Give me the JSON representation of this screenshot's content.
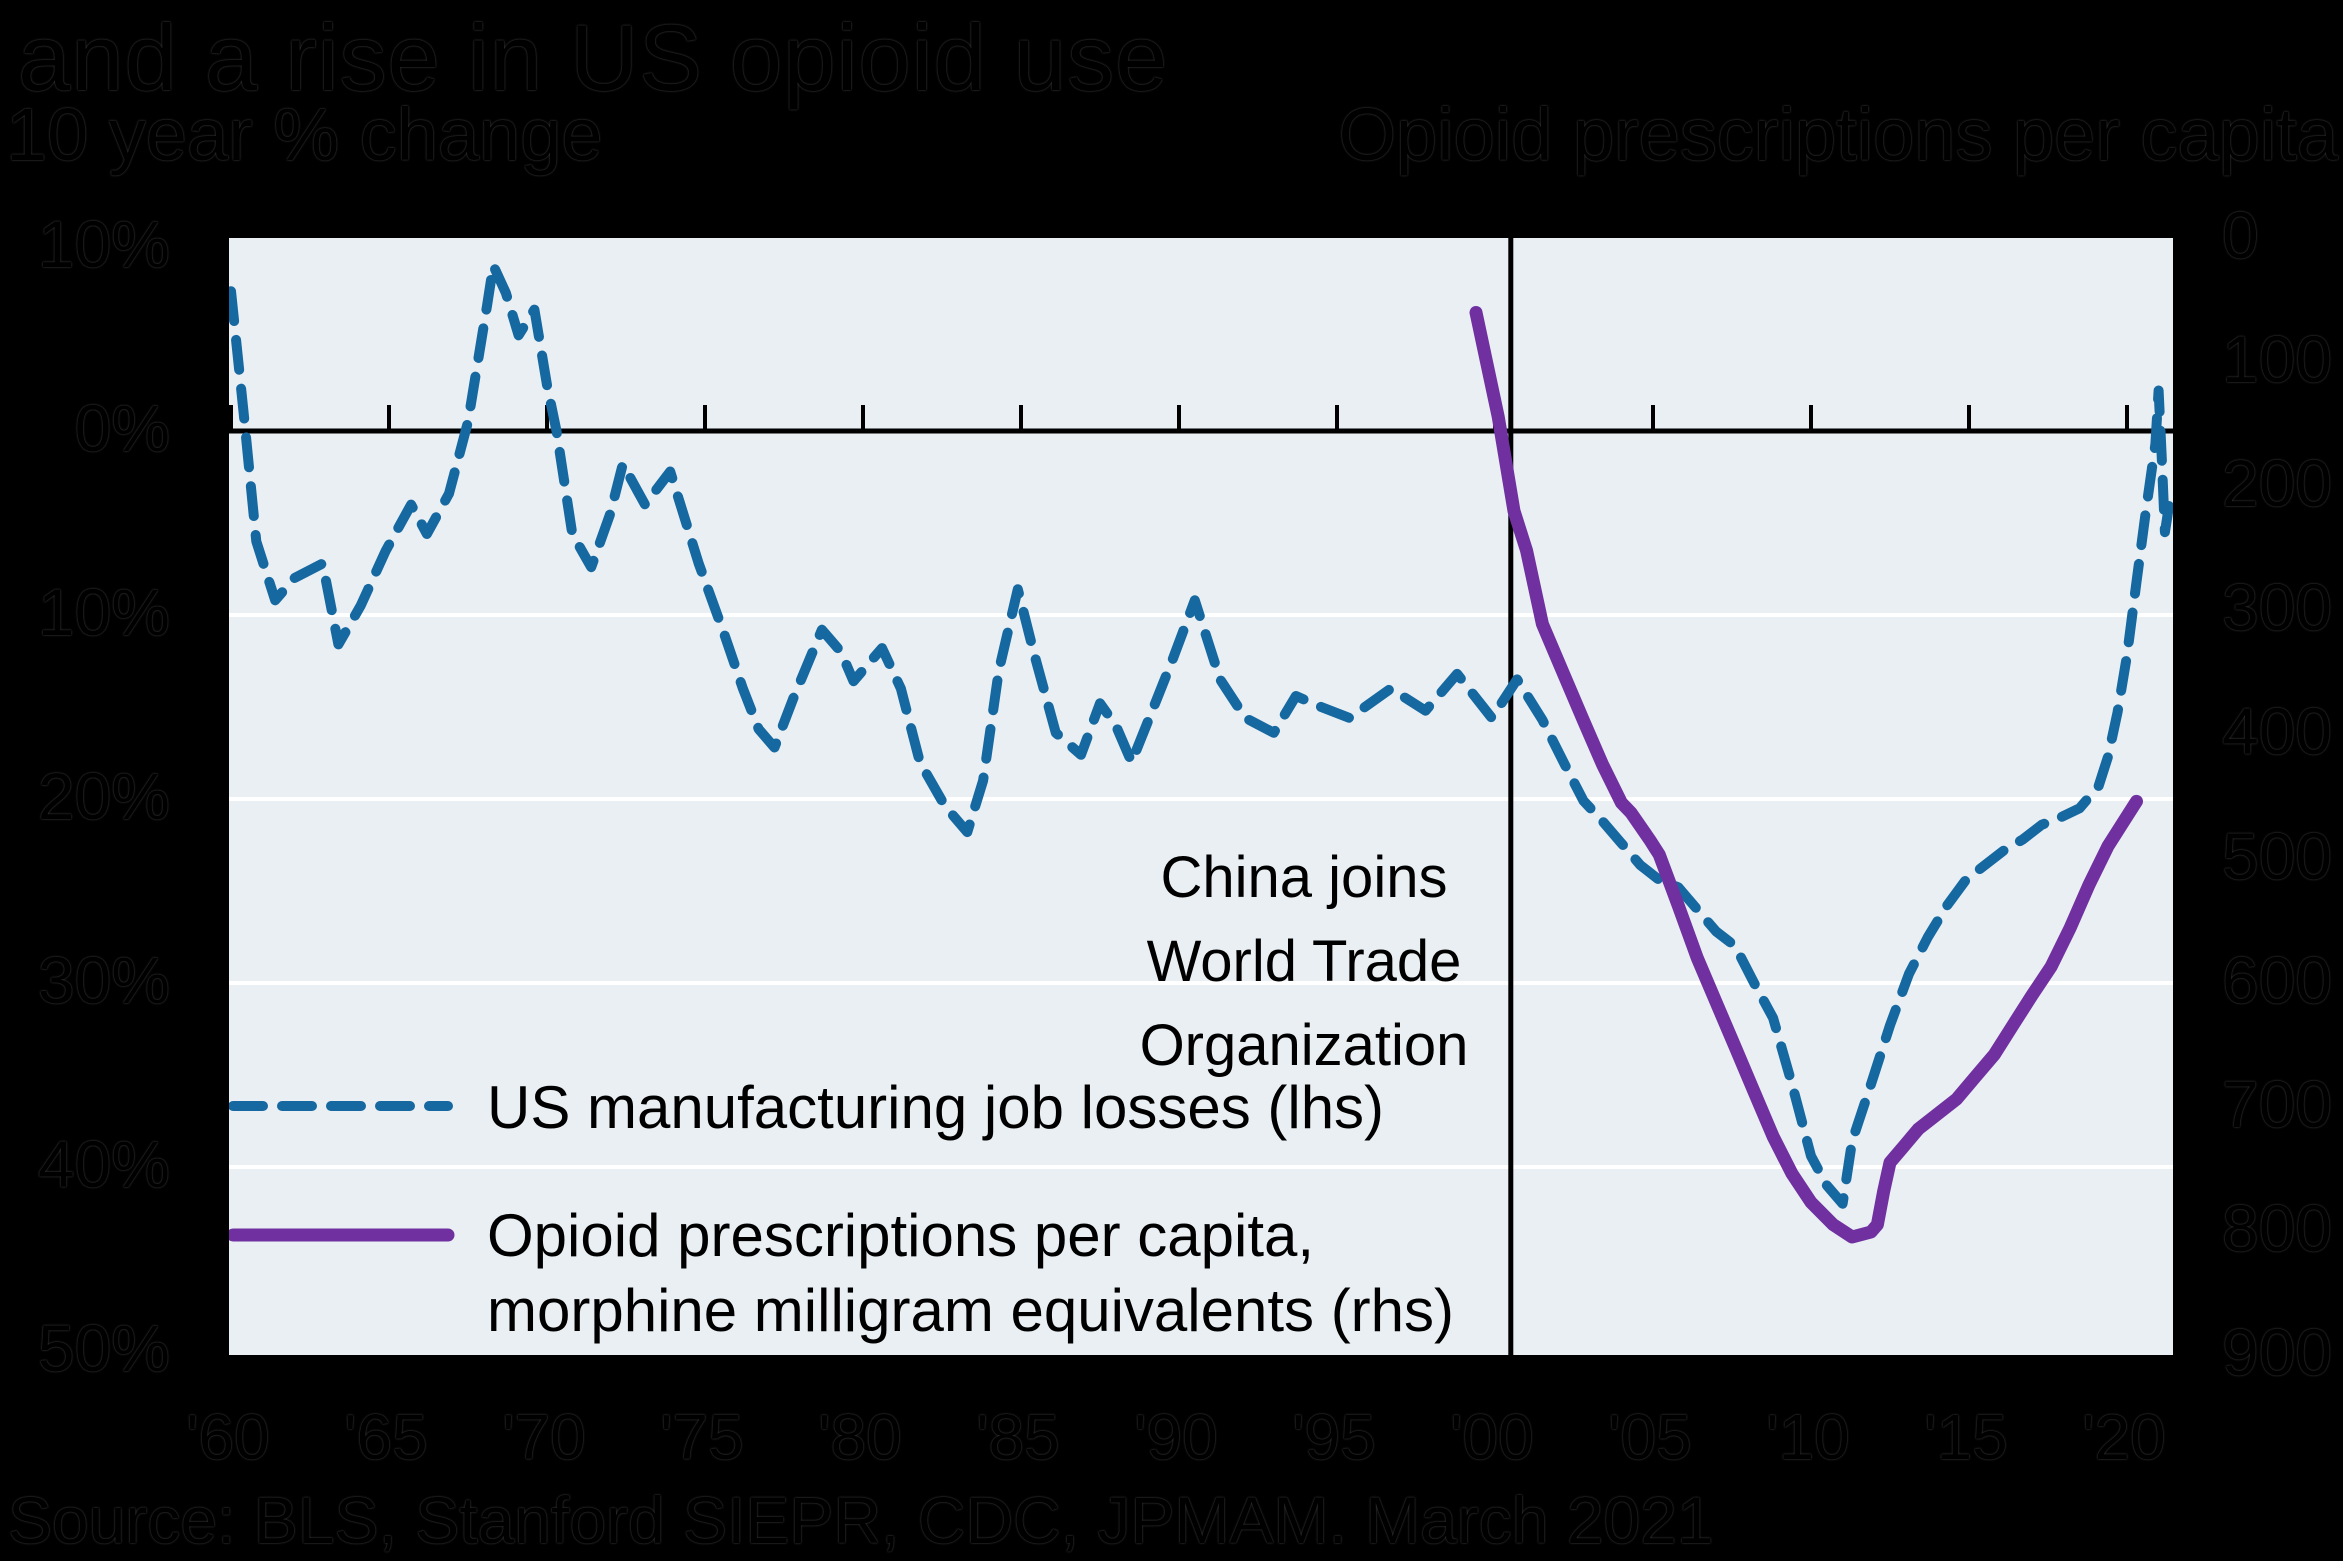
{
  "header": {
    "title": "and a rise in US opioid use",
    "subtitle_left": "10 year % change",
    "subtitle_right": "Opioid prescriptions per capita"
  },
  "annotation": {
    "line1": "China joins",
    "line2": "World Trade",
    "line3": "Organization"
  },
  "legend": {
    "series1_label": "US manufacturing job losses (lhs)",
    "series2_label_line1": "Opioid prescriptions per capita,",
    "series2_label_line2": "morphine milligram equivalents (rhs)"
  },
  "source": "Source: BLS, Stanford SIEPR, CDC, JPMAM. March 2021",
  "colors": {
    "job_losses_line": "#1668a1",
    "opioid_line": "#7030a0",
    "plot_background": "#e9eff3",
    "gridline": "#ffffff",
    "axis_line": "#000000",
    "page_background": "#000000"
  },
  "chart_data": {
    "type": "line",
    "title": "and a rise in US opioid use",
    "left_axis": {
      "label": "10 year % change",
      "tick_labels": [
        "10%",
        "0%",
        "10%",
        "20%",
        "30%",
        "40%",
        "50%"
      ],
      "tick_values": [
        10,
        0,
        -10,
        -20,
        -30,
        -40,
        -50
      ],
      "range": [
        10,
        -50
      ]
    },
    "right_axis": {
      "label": "Opioid prescriptions per capita",
      "tick_labels": [
        "0",
        "100",
        "200",
        "300",
        "400",
        "500",
        "600",
        "700",
        "800",
        "900"
      ],
      "tick_values": [
        0,
        100,
        200,
        300,
        400,
        500,
        600,
        700,
        800,
        900
      ],
      "range": [
        0,
        900
      ],
      "inverted": true
    },
    "x_axis": {
      "tick_labels": [
        "'60",
        "'65",
        "'70",
        "'75",
        "'80",
        "'85",
        "'90",
        "'95",
        "'00",
        "'05",
        "'10",
        "'15",
        "'20"
      ],
      "tick_years": [
        1960,
        1965,
        1970,
        1975,
        1980,
        1985,
        1990,
        1995,
        2000,
        2005,
        2010,
        2015,
        2020
      ],
      "range": [
        1959.9,
        2021.5
      ]
    },
    "annotation_line": {
      "text": "China joins World Trade Organization",
      "year": 2000.5
    },
    "grid": "horizontal white lines at -10%, -20%, -30%, -40%; black zero line with upward year ticks",
    "legend_position": "inside lower left",
    "series": [
      {
        "name": "US manufacturing job losses (lhs)",
        "axis": "left",
        "style": "dashed",
        "color": "#1668a1",
        "points": [
          [
            1960.0,
            7.6
          ],
          [
            1960.4,
            1.0
          ],
          [
            1960.8,
            -6.0
          ],
          [
            1961.4,
            -9.2
          ],
          [
            1962.0,
            -8.0
          ],
          [
            1962.9,
            -7.2
          ],
          [
            1963.4,
            -11.6
          ],
          [
            1964.1,
            -9.5
          ],
          [
            1964.9,
            -6.5
          ],
          [
            1965.7,
            -4.0
          ],
          [
            1966.2,
            -5.6
          ],
          [
            1966.9,
            -3.4
          ],
          [
            1967.5,
            0.5
          ],
          [
            1968.1,
            6.8
          ],
          [
            1968.3,
            9.0
          ],
          [
            1968.7,
            7.5
          ],
          [
            1969.1,
            5.2
          ],
          [
            1969.6,
            6.6
          ],
          [
            1970.0,
            2.5
          ],
          [
            1970.3,
            0.0
          ],
          [
            1970.8,
            -5.6
          ],
          [
            1971.4,
            -7.4
          ],
          [
            1972.0,
            -4.5
          ],
          [
            1972.4,
            -1.8
          ],
          [
            1973.1,
            -4.0
          ],
          [
            1973.9,
            -2.2
          ],
          [
            1974.8,
            -7.2
          ],
          [
            1975.6,
            -11.0
          ],
          [
            1976.2,
            -14.0
          ],
          [
            1976.7,
            -16.2
          ],
          [
            1977.2,
            -17.2
          ],
          [
            1977.8,
            -14.5
          ],
          [
            1978.7,
            -10.8
          ],
          [
            1979.3,
            -12.0
          ],
          [
            1979.7,
            -13.6
          ],
          [
            1980.6,
            -11.8
          ],
          [
            1981.2,
            -14.0
          ],
          [
            1981.8,
            -18.0
          ],
          [
            1982.6,
            -20.4
          ],
          [
            1983.3,
            -21.8
          ],
          [
            1983.8,
            -19.0
          ],
          [
            1984.3,
            -13.0
          ],
          [
            1984.9,
            -8.6
          ],
          [
            1985.4,
            -12.0
          ],
          [
            1986.1,
            -16.4
          ],
          [
            1986.9,
            -17.6
          ],
          [
            1987.5,
            -14.8
          ],
          [
            1988.0,
            -16.0
          ],
          [
            1988.5,
            -18.0
          ],
          [
            1989.2,
            -15.0
          ],
          [
            1989.8,
            -12.4
          ],
          [
            1990.5,
            -9.2
          ],
          [
            1991.3,
            -13.5
          ],
          [
            1992.1,
            -15.6
          ],
          [
            1993.0,
            -16.4
          ],
          [
            1993.7,
            -14.4
          ],
          [
            1994.5,
            -15.0
          ],
          [
            1995.4,
            -15.6
          ],
          [
            1996.7,
            -14.0
          ],
          [
            1997.8,
            -15.2
          ],
          [
            1998.8,
            -13.2
          ],
          [
            1999.9,
            -15.6
          ],
          [
            2000.7,
            -13.5
          ],
          [
            2001.5,
            -15.7
          ],
          [
            2002.2,
            -18.1
          ],
          [
            2002.8,
            -20.1
          ],
          [
            2003.4,
            -21.2
          ],
          [
            2004.0,
            -22.4
          ],
          [
            2004.6,
            -23.6
          ],
          [
            2005.2,
            -24.4
          ],
          [
            2005.8,
            -24.8
          ],
          [
            2006.4,
            -26.0
          ],
          [
            2007.0,
            -27.2
          ],
          [
            2007.6,
            -28.0
          ],
          [
            2008.2,
            -30.0
          ],
          [
            2008.8,
            -31.9
          ],
          [
            2009.4,
            -35.5
          ],
          [
            2010.0,
            -39.4
          ],
          [
            2010.5,
            -41.0
          ],
          [
            2011.0,
            -42.0
          ],
          [
            2011.3,
            -38.6
          ],
          [
            2011.9,
            -35.5
          ],
          [
            2012.5,
            -32.3
          ],
          [
            2013.1,
            -29.5
          ],
          [
            2013.7,
            -27.5
          ],
          [
            2014.3,
            -25.8
          ],
          [
            2014.9,
            -24.4
          ],
          [
            2015.5,
            -23.6
          ],
          [
            2016.1,
            -22.8
          ],
          [
            2016.7,
            -22.2
          ],
          [
            2017.3,
            -21.4
          ],
          [
            2017.9,
            -21.0
          ],
          [
            2018.5,
            -20.5
          ],
          [
            2019.1,
            -19.3
          ],
          [
            2019.4,
            -17.7
          ],
          [
            2019.7,
            -15.3
          ],
          [
            2020.0,
            -12.2
          ],
          [
            2020.3,
            -8.2
          ],
          [
            2020.6,
            -4.3
          ],
          [
            2020.9,
            -0.7
          ],
          [
            2021.0,
            2.2
          ],
          [
            2021.1,
            -1.5
          ],
          [
            2021.2,
            -5.5
          ],
          [
            2021.4,
            -3.3
          ]
        ]
      },
      {
        "name": "Opioid prescriptions per capita, morphine milligram equivalents (rhs)",
        "axis": "right",
        "style": "solid",
        "color": "#7030a0",
        "points": [
          [
            1999.4,
            60
          ],
          [
            2000.1,
            144
          ],
          [
            2000.6,
            220
          ],
          [
            2001.0,
            252
          ],
          [
            2001.5,
            311
          ],
          [
            2002.2,
            353
          ],
          [
            2002.8,
            389
          ],
          [
            2003.4,
            424
          ],
          [
            2004.0,
            455
          ],
          [
            2004.3,
            463
          ],
          [
            2004.9,
            485
          ],
          [
            2005.2,
            497
          ],
          [
            2005.8,
            538
          ],
          [
            2006.4,
            580
          ],
          [
            2007.0,
            616
          ],
          [
            2007.6,
            652
          ],
          [
            2008.2,
            688
          ],
          [
            2008.8,
            724
          ],
          [
            2009.4,
            754
          ],
          [
            2010.0,
            777
          ],
          [
            2010.7,
            795
          ],
          [
            2011.3,
            805
          ],
          [
            2011.9,
            801
          ],
          [
            2012.1,
            795
          ],
          [
            2012.3,
            768
          ],
          [
            2012.5,
            745
          ],
          [
            2012.8,
            736
          ],
          [
            2013.4,
            718
          ],
          [
            2014.0,
            706
          ],
          [
            2014.6,
            694
          ],
          [
            2015.2,
            676
          ],
          [
            2015.8,
            658
          ],
          [
            2016.4,
            634
          ],
          [
            2017.0,
            610
          ],
          [
            2017.6,
            587
          ],
          [
            2018.2,
            556
          ],
          [
            2018.8,
            521
          ],
          [
            2019.4,
            490
          ],
          [
            2020.0,
            466
          ],
          [
            2020.3,
            454
          ]
        ]
      }
    ]
  }
}
